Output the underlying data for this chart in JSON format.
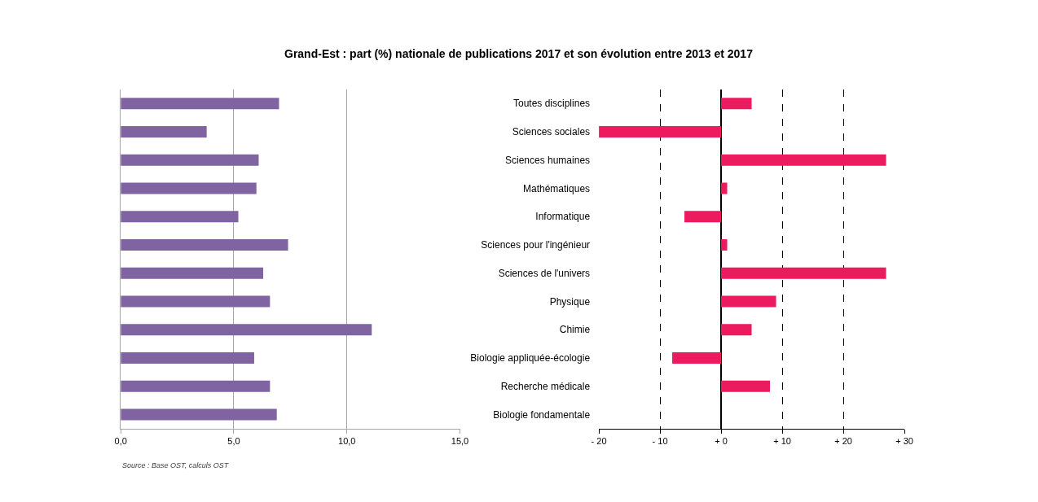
{
  "chart_data": [
    {
      "type": "bar",
      "orientation": "horizontal",
      "title": "Grand-Est : part (%) nationale de publications 2017 et son évolution entre 2013 et 2017",
      "categories": [
        null,
        null,
        null,
        null,
        null,
        null,
        null,
        null,
        null,
        null,
        null,
        null
      ],
      "values": [
        7.0,
        3.8,
        6.1,
        6.0,
        5.2,
        7.4,
        6.3,
        6.6,
        11.1,
        5.9,
        6.6,
        6.9
      ],
      "color": "#8064a2",
      "xlim": [
        0,
        15
      ],
      "xticks": [
        {
          "value": 0,
          "label": "0,0"
        },
        {
          "value": 5,
          "label": "5,0"
        },
        {
          "value": 10,
          "label": "10,0"
        },
        {
          "value": 15,
          "label": "15,0"
        }
      ],
      "grid": "x",
      "tick_labels": "x",
      "annotations": [
        "Source : Base OST, calculs OST"
      ]
    },
    {
      "type": "bar",
      "orientation": "horizontal",
      "categories": [
        "Toutes disciplines",
        "Sciences sociales",
        "Sciences humaines",
        "Mathématiques",
        "Informatique",
        "Sciences pour l'ingénieur",
        "Sciences de l'univers",
        "Physique",
        "Chimie",
        "Biologie appliquée-écologie",
        "Recherche médicale",
        "Biologie fondamentale"
      ],
      "values": [
        5,
        -20,
        27,
        1,
        -6,
        1,
        27,
        9,
        5,
        -8,
        8,
        0
      ],
      "color": "#ec1a5e",
      "xlim": [
        -20,
        30
      ],
      "xticks": [
        {
          "value": -20,
          "label": "- 20"
        },
        {
          "value": -10,
          "label": "- 10"
        },
        {
          "value": 0,
          "label": "+ 0"
        },
        {
          "value": 10,
          "label": "+ 10"
        },
        {
          "value": 20,
          "label": "+ 20"
        },
        {
          "value": 30,
          "label": "+ 30"
        }
      ],
      "grid": "x"
    }
  ]
}
